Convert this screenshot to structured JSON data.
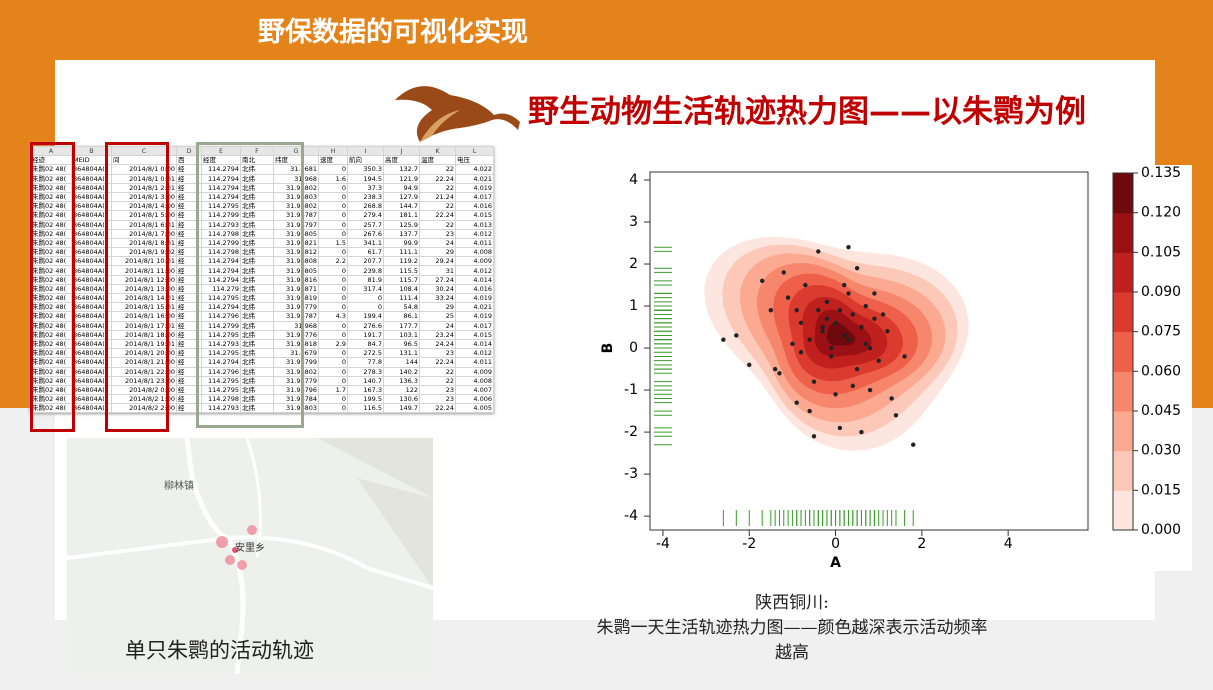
{
  "header": {
    "title": "野保数据的可视化实现"
  },
  "slide_title": "野生动物生活轨迹热力图——以朱鹮为例",
  "sheet": {
    "column_letters": [
      "A",
      "B",
      "C",
      "D",
      "E",
      "F",
      "G",
      "H",
      "I",
      "J",
      "K",
      "L"
    ],
    "header": [
      "经迹",
      "MEID",
      "间",
      "西",
      "经度",
      "南北",
      "纬度",
      "速度",
      "航向",
      "高度",
      "温度",
      "电压"
    ],
    "rows": [
      [
        "朱鹮02 48(",
        "864804A(",
        "2014/8/1 0:00",
        "经",
        "114.2794",
        "北纬",
        "31.9681",
        "0",
        "350.3",
        "132.7",
        "22",
        "4.022"
      ],
      [
        "朱鹮02 48(",
        "864804A(",
        "2014/8/1 0:01",
        "经",
        "114.2794",
        "北纬",
        "31.968",
        "1.6",
        "194.5",
        "121.9",
        "22.24",
        "4.021"
      ],
      [
        "朱鹮02 48(",
        "864804A(",
        "2014/8/1 2:01",
        "经",
        "114.2794",
        "北纬",
        "31.96802",
        "0",
        "37.3",
        "94.9",
        "22",
        "4.019"
      ],
      [
        "朱鹮02 48(",
        "864804A(",
        "2014/8/1 3:00",
        "经",
        "114.2794",
        "北纬",
        "31.96803",
        "0",
        "238.3",
        "127.9",
        "21.24",
        "4.017"
      ],
      [
        "朱鹮02 48(",
        "864804A(",
        "2014/8/1 4:00",
        "经",
        "114.2795",
        "北纬",
        "31.96802",
        "0",
        "268.8",
        "144.7",
        "22",
        "4.016"
      ],
      [
        "朱鹮02 48(",
        "864804A(",
        "2014/8/1 5:00",
        "经",
        "114.2799",
        "北纬",
        "31.96787",
        "0",
        "279.4",
        "181.1",
        "22.24",
        "4.015"
      ],
      [
        "朱鹮02 48(",
        "864804A(",
        "2014/8/1 6:01",
        "经",
        "114.2793",
        "北纬",
        "31.96797",
        "0",
        "257.7",
        "125.9",
        "22",
        "4.013"
      ],
      [
        "朱鹮02 48(",
        "864804A(",
        "2014/8/1 7:00",
        "经",
        "114.2798",
        "北纬",
        "31.96805",
        "0",
        "267.6",
        "137.7",
        "23",
        "4.012"
      ],
      [
        "朱鹮02 48(",
        "864804A(",
        "2014/8/1 8:01",
        "经",
        "114.2799",
        "北纬",
        "31.96821",
        "1.5",
        "341.1",
        "99.9",
        "24",
        "4.011"
      ],
      [
        "朱鹮02 48(",
        "864804A(",
        "2014/8/1 9:02",
        "经",
        "114.2798",
        "北纬",
        "31.96812",
        "0",
        "61.7",
        "111.1",
        "29",
        "4.008"
      ],
      [
        "朱鹮02 48(",
        "864804A(",
        "2014/8/1 10:01",
        "经",
        "114.2794",
        "北纬",
        "31.96808",
        "2.2",
        "207.7",
        "119.2",
        "29.24",
        "4.009"
      ],
      [
        "朱鹮02 48(",
        "864804A(",
        "2014/8/1 11:00",
        "经",
        "114.2794",
        "北纬",
        "31.96805",
        "0",
        "239.8",
        "115.5",
        "31",
        "4.012"
      ],
      [
        "朱鹮02 48(",
        "864804A(",
        "2014/8/1 12:00",
        "经",
        "114.2794",
        "北纬",
        "31.96816",
        "0",
        "81.9",
        "115.7",
        "27.24",
        "4.014"
      ],
      [
        "朱鹮02 48(",
        "864804A(",
        "2014/8/1 13:00",
        "经",
        "114.279",
        "北纬",
        "31.96871",
        "0",
        "317.4",
        "108.4",
        "30.24",
        "4.016"
      ],
      [
        "朱鹮02 48(",
        "864804A(",
        "2014/8/1 14:01",
        "经",
        "114.2795",
        "北纬",
        "31.96819",
        "0",
        "0",
        "111.4",
        "33.24",
        "4.019"
      ],
      [
        "朱鹮02 48(",
        "864804A(",
        "2014/8/1 15:01",
        "经",
        "114.2794",
        "北纬",
        "31.96779",
        "0",
        "0",
        "54.8",
        "29",
        "4.021"
      ],
      [
        "朱鹮02 48(",
        "864804A(",
        "2014/8/1 16:00",
        "经",
        "114.2796",
        "北纬",
        "31.96787",
        "4.3",
        "199.4",
        "86.1",
        "25",
        "4.019"
      ],
      [
        "朱鹮02 48(",
        "864804A(",
        "2014/8/1 17:01",
        "经",
        "114.2799",
        "北纬",
        "31.968",
        "0",
        "276.6",
        "177.7",
        "24",
        "4.017"
      ],
      [
        "朱鹮02 48(",
        "864804A(",
        "2014/8/1 18:00",
        "经",
        "114.2795",
        "北纬",
        "31.96776",
        "0",
        "191.7",
        "103.1",
        "23.24",
        "4.015"
      ],
      [
        "朱鹮02 48(",
        "864804A(",
        "2014/8/1 19:01",
        "经",
        "114.2793",
        "北纬",
        "31.96818",
        "2.9",
        "84.7",
        "96.5",
        "24.24",
        "4.014"
      ],
      [
        "朱鹮02 48(",
        "864804A(",
        "2014/8/1 20:00",
        "经",
        "114.2795",
        "北纬",
        "31.9679",
        "0",
        "272.5",
        "131.1",
        "23",
        "4.012"
      ],
      [
        "朱鹮02 48(",
        "864804A(",
        "2014/8/1 21:00",
        "经",
        "114.2794",
        "北纬",
        "31.96799",
        "0",
        "77.8",
        "144",
        "22.24",
        "4.011"
      ],
      [
        "朱鹮02 48(",
        "864804A(",
        "2014/8/1 22:00",
        "经",
        "114.2796",
        "北纬",
        "31.96802",
        "0",
        "278.3",
        "140.2",
        "22",
        "4.009"
      ],
      [
        "朱鹮02 48(",
        "864804A(",
        "2014/8/1 23:00",
        "经",
        "114.2795",
        "北纬",
        "31.96779",
        "0",
        "140.7",
        "136.3",
        "22",
        "4.008"
      ],
      [
        "朱鹮02 48(",
        "864804A(",
        "2014/8/2 0:00",
        "经",
        "114.2795",
        "北纬",
        "31.96796",
        "1.7",
        "167.3",
        "122",
        "23",
        "4.007"
      ],
      [
        "朱鹮02 48(",
        "864804A(",
        "2014/8/2 1:00",
        "经",
        "114.2798",
        "北纬",
        "31.96784",
        "0",
        "199.5",
        "130.6",
        "23",
        "4.006"
      ],
      [
        "朱鹮02 48(",
        "864804A(",
        "2014/8/2 2:00",
        "经",
        "114.2793",
        "北纬",
        "31.96803",
        "0",
        "116.5",
        "149.7",
        "22.24",
        "4.005"
      ]
    ]
  },
  "map": {
    "labels": [
      "柳林镇",
      "安里乡"
    ],
    "caption": "单只朱鹮的活动轨迹"
  },
  "chart_data": {
    "type": "density",
    "xlabel": "A",
    "ylabel": "B",
    "xlim": [
      -4.3,
      5.85
    ],
    "ylim": [
      -4.33,
      4.19
    ],
    "xticks": [
      -4,
      -2,
      0,
      2,
      4
    ],
    "yticks": [
      -4,
      -3,
      -2,
      -1,
      0,
      1,
      2,
      3,
      4
    ],
    "point_color": "#222222",
    "rug_color": "#3a9a2a",
    "x": [
      -2.3,
      -2.0,
      -1.7,
      -1.5,
      -1.3,
      -1.1,
      -1.0,
      -0.9,
      -0.8,
      -0.7,
      -0.6,
      -0.5,
      -0.4,
      -0.3,
      -0.2,
      -0.1,
      0,
      0.1,
      0.2,
      0.3,
      0.4,
      0.5,
      0.6,
      0.7,
      0.8,
      0.9,
      1.0,
      1.2,
      1.4,
      1.6,
      -1.2,
      -0.4,
      0.1,
      0.5,
      0.9,
      -0.8,
      -0.2,
      0.3,
      0.7,
      -0.6,
      0.0,
      0.4,
      -1.4,
      1.1,
      -0.3,
      0.2,
      -0.9,
      0.6,
      1.3,
      -0.1,
      -2.6,
      0.3,
      -0.5,
      1.8,
      0.8
    ],
    "y": [
      0.3,
      -0.4,
      1.6,
      0.9,
      -0.6,
      1.2,
      0.1,
      -1.3,
      0.6,
      1.5,
      0.2,
      -0.8,
      0.9,
      0.4,
      1.1,
      -0.2,
      0.6,
      0.9,
      0.3,
      1.3,
      0.8,
      -0.5,
      0.5,
      0.1,
      -1.0,
      0.7,
      -0.3,
      0.4,
      -1.6,
      -0.2,
      1.8,
      2.3,
      -1.9,
      1.9,
      1.3,
      -0.1,
      0.7,
      0.2,
      1.0,
      -1.5,
      -1.1,
      -0.9,
      -0.5,
      0.8,
      0.5,
      1.5,
      0.9,
      -2.0,
      -1.2,
      0.0,
      0.2,
      2.4,
      -2.1,
      -2.3,
      0.0
    ],
    "colorbar": {
      "lim": [
        0,
        0.135
      ],
      "ticks": [
        {
          "value": 0,
          "label": "0.000"
        },
        {
          "value": 0.015,
          "label": "0.015"
        },
        {
          "value": 0.03,
          "label": "0.030"
        },
        {
          "value": 0.045,
          "label": "0.045"
        },
        {
          "value": 0.06,
          "label": "0.060"
        },
        {
          "value": 0.075,
          "label": "0.075"
        },
        {
          "value": 0.09,
          "label": "0.090"
        },
        {
          "value": 0.105,
          "label": "0.105"
        },
        {
          "value": 0.12,
          "label": "0.120"
        },
        {
          "value": 0.135,
          "label": "0.135"
        }
      ],
      "colors": [
        "#fde6df",
        "#fcc9b8",
        "#fba990",
        "#f6876d",
        "#ee6049",
        "#db3a2e",
        "#c0211f",
        "#9a1015",
        "#6e0a0d"
      ]
    }
  },
  "captions": [
    "陕西铜川:",
    "朱鹮一天生活轨迹热力图——颜色越深表示活动频率越高"
  ]
}
